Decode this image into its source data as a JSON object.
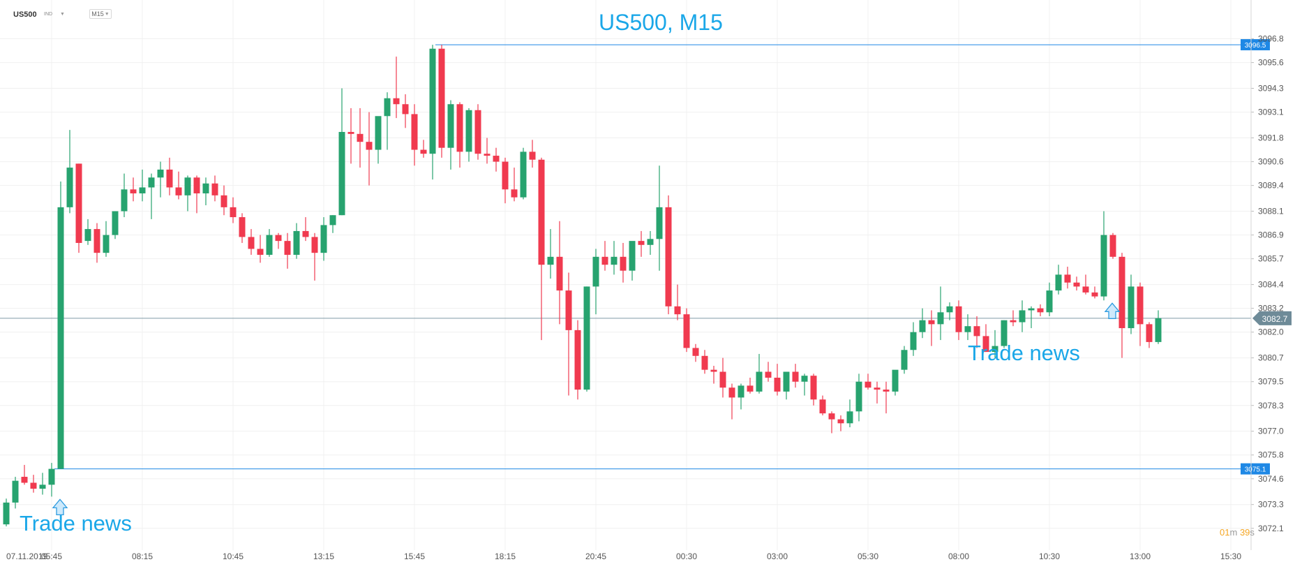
{
  "header": {
    "symbol": "US500",
    "market_type": "IND",
    "timeframe": "M15",
    "title": "US500, M15"
  },
  "timer": {
    "minutes": "01",
    "m_unit": "m",
    "seconds": "39",
    "s_unit": "s"
  },
  "colors": {
    "up": "#27a36f",
    "down": "#f03a4f",
    "level_line": "#1e88e5",
    "title": "#1aa7e8",
    "annotation": "#1aa7e8",
    "grid": "#f0f0f0",
    "axis_text": "#555555"
  },
  "chart_data": {
    "type": "candlestick",
    "title": "US500, M15",
    "ylim": [
      3071.0,
      3097.7
    ],
    "y_ticks": [
      "3096.8",
      "3095.6",
      "3094.3",
      "3093.1",
      "3091.8",
      "3090.6",
      "3089.4",
      "3088.1",
      "3086.9",
      "3085.7",
      "3084.4",
      "3083.2",
      "3082.0",
      "3080.7",
      "3079.5",
      "3078.3",
      "3077.0",
      "3075.8",
      "3074.6",
      "3073.3",
      "3072.1"
    ],
    "x_labels": [
      "07.11.2019",
      "05:45",
      "08:15",
      "10:45",
      "13:15",
      "15:45",
      "18:15",
      "20:45",
      "00:30",
      "03:00",
      "05:30",
      "08:00",
      "10:30",
      "13:00",
      "15:30"
    ],
    "candles": [
      [
        3072.3,
        3073.6,
        3072.2,
        3073.4
      ],
      [
        3073.4,
        3074.7,
        3073.1,
        3074.5
      ],
      [
        3074.7,
        3075.3,
        3074.3,
        3074.4
      ],
      [
        3074.4,
        3074.8,
        3073.9,
        3074.1
      ],
      [
        3074.1,
        3074.9,
        3073.8,
        3074.3
      ],
      [
        3074.3,
        3075.4,
        3073.7,
        3075.1
      ],
      [
        3075.1,
        3089.6,
        3075.1,
        3088.3
      ],
      [
        3088.3,
        3092.2,
        3088.0,
        3090.3
      ],
      [
        3090.5,
        3090.5,
        3086.0,
        3086.5
      ],
      [
        3086.6,
        3087.7,
        3086.4,
        3087.2
      ],
      [
        3087.2,
        3087.5,
        3085.5,
        3086.0
      ],
      [
        3086.0,
        3087.6,
        3085.8,
        3086.9
      ],
      [
        3086.9,
        3088.1,
        3086.7,
        3088.1
      ],
      [
        3088.1,
        3090.0,
        3087.8,
        3089.2
      ],
      [
        3089.2,
        3089.8,
        3088.6,
        3089.0
      ],
      [
        3089.0,
        3090.2,
        3088.6,
        3089.3
      ],
      [
        3089.3,
        3090.0,
        3087.7,
        3089.8
      ],
      [
        3089.8,
        3090.6,
        3088.8,
        3090.2
      ],
      [
        3090.2,
        3090.8,
        3088.9,
        3089.3
      ],
      [
        3089.3,
        3090.1,
        3088.7,
        3088.9
      ],
      [
        3088.9,
        3089.9,
        3088.1,
        3089.8
      ],
      [
        3089.8,
        3089.9,
        3088.0,
        3089.0
      ],
      [
        3089.0,
        3089.8,
        3088.4,
        3089.5
      ],
      [
        3089.5,
        3089.9,
        3088.6,
        3088.9
      ],
      [
        3088.9,
        3089.4,
        3087.9,
        3088.3
      ],
      [
        3088.3,
        3088.8,
        3087.5,
        3087.8
      ],
      [
        3087.8,
        3088.0,
        3086.5,
        3086.8
      ],
      [
        3086.8,
        3087.2,
        3085.9,
        3086.2
      ],
      [
        3086.2,
        3086.9,
        3085.5,
        3085.9
      ],
      [
        3085.9,
        3087.2,
        3085.8,
        3086.9
      ],
      [
        3086.9,
        3087.0,
        3086.2,
        3086.6
      ],
      [
        3086.6,
        3087.0,
        3085.2,
        3085.9
      ],
      [
        3085.9,
        3087.5,
        3085.7,
        3087.1
      ],
      [
        3087.1,
        3087.8,
        3086.6,
        3086.8
      ],
      [
        3086.8,
        3087.0,
        3084.6,
        3086.0
      ],
      [
        3086.0,
        3087.8,
        3085.6,
        3087.4
      ],
      [
        3087.4,
        3087.9,
        3087.0,
        3087.9
      ],
      [
        3087.9,
        3094.3,
        3087.9,
        3092.1
      ],
      [
        3092.1,
        3093.3,
        3090.5,
        3092.0
      ],
      [
        3092.0,
        3093.3,
        3090.3,
        3091.6
      ],
      [
        3091.6,
        3093.1,
        3089.4,
        3091.2
      ],
      [
        3091.2,
        3092.7,
        3090.5,
        3092.9
      ],
      [
        3092.9,
        3094.1,
        3091.2,
        3093.8
      ],
      [
        3093.8,
        3095.9,
        3092.8,
        3093.5
      ],
      [
        3093.5,
        3094.0,
        3092.3,
        3093.0
      ],
      [
        3093.0,
        3093.5,
        3090.4,
        3091.2
      ],
      [
        3091.2,
        3091.7,
        3090.8,
        3091.0
      ],
      [
        3091.0,
        3096.5,
        3089.7,
        3096.3
      ],
      [
        3096.3,
        3096.5,
        3090.8,
        3091.3
      ],
      [
        3091.3,
        3093.7,
        3090.2,
        3093.5
      ],
      [
        3093.5,
        3093.6,
        3090.3,
        3091.1
      ],
      [
        3091.1,
        3093.3,
        3090.6,
        3093.2
      ],
      [
        3093.2,
        3093.5,
        3090.7,
        3091.0
      ],
      [
        3091.0,
        3091.8,
        3090.5,
        3090.9
      ],
      [
        3090.9,
        3091.3,
        3090.1,
        3090.6
      ],
      [
        3090.6,
        3090.8,
        3088.5,
        3089.2
      ],
      [
        3089.2,
        3090.3,
        3088.6,
        3088.8
      ],
      [
        3088.8,
        3091.3,
        3088.7,
        3091.1
      ],
      [
        3091.1,
        3091.7,
        3090.3,
        3090.7
      ],
      [
        3090.7,
        3090.8,
        3081.6,
        3085.4
      ],
      [
        3085.4,
        3087.2,
        3084.7,
        3085.8
      ],
      [
        3085.8,
        3087.6,
        3082.4,
        3084.1
      ],
      [
        3084.1,
        3085.0,
        3078.8,
        3082.1
      ],
      [
        3082.1,
        3082.6,
        3078.6,
        3079.1
      ],
      [
        3079.1,
        3084.3,
        3079.0,
        3084.3
      ],
      [
        3084.3,
        3086.2,
        3082.9,
        3085.8
      ],
      [
        3085.8,
        3086.6,
        3085.1,
        3085.4
      ],
      [
        3085.4,
        3086.6,
        3084.9,
        3085.8
      ],
      [
        3085.8,
        3086.5,
        3084.5,
        3085.1
      ],
      [
        3085.1,
        3086.5,
        3084.6,
        3086.6
      ],
      [
        3086.6,
        3087.1,
        3085.8,
        3086.4
      ],
      [
        3086.4,
        3087.1,
        3085.9,
        3086.7
      ],
      [
        3086.7,
        3090.4,
        3085.1,
        3088.3
      ],
      [
        3088.3,
        3088.9,
        3082.9,
        3083.3
      ],
      [
        3083.3,
        3084.4,
        3082.6,
        3082.9
      ],
      [
        3082.9,
        3083.2,
        3081.0,
        3081.2
      ],
      [
        3081.2,
        3081.4,
        3080.5,
        3080.8
      ],
      [
        3080.8,
        3081.1,
        3079.9,
        3080.1
      ],
      [
        3080.1,
        3080.3,
        3079.4,
        3080.0
      ],
      [
        3080.0,
        3080.7,
        3078.7,
        3079.2
      ],
      [
        3079.2,
        3079.4,
        3077.6,
        3078.7
      ],
      [
        3078.7,
        3079.4,
        3078.1,
        3079.3
      ],
      [
        3079.3,
        3079.7,
        3078.9,
        3079.0
      ],
      [
        3079.0,
        3080.9,
        3078.9,
        3080.0
      ],
      [
        3080.0,
        3080.5,
        3079.5,
        3079.7
      ],
      [
        3079.7,
        3080.4,
        3078.8,
        3079.0
      ],
      [
        3079.0,
        3079.8,
        3078.6,
        3080.0
      ],
      [
        3080.0,
        3080.4,
        3079.2,
        3079.5
      ],
      [
        3079.5,
        3079.9,
        3078.8,
        3079.8
      ],
      [
        3079.8,
        3079.9,
        3078.3,
        3078.6
      ],
      [
        3078.6,
        3078.8,
        3077.8,
        3077.9
      ],
      [
        3077.9,
        3078.0,
        3076.9,
        3077.6
      ],
      [
        3077.6,
        3077.8,
        3077.0,
        3077.4
      ],
      [
        3077.4,
        3078.6,
        3077.2,
        3078.0
      ],
      [
        3078.0,
        3079.9,
        3077.5,
        3079.5
      ],
      [
        3079.5,
        3079.9,
        3079.1,
        3079.2
      ],
      [
        3079.2,
        3079.5,
        3078.4,
        3079.1
      ],
      [
        3079.1,
        3079.5,
        3077.9,
        3079.0
      ],
      [
        3079.0,
        3079.9,
        3078.8,
        3080.1
      ],
      [
        3080.1,
        3081.3,
        3079.9,
        3081.1
      ],
      [
        3081.1,
        3082.5,
        3080.8,
        3082.0
      ],
      [
        3082.0,
        3083.2,
        3081.7,
        3082.6
      ],
      [
        3082.6,
        3083.1,
        3081.3,
        3082.4
      ],
      [
        3082.4,
        3084.3,
        3081.6,
        3083.0
      ],
      [
        3083.0,
        3083.5,
        3082.6,
        3083.3
      ],
      [
        3083.3,
        3083.6,
        3081.6,
        3082.0
      ],
      [
        3082.0,
        3082.9,
        3081.6,
        3082.3
      ],
      [
        3082.3,
        3082.8,
        3081.2,
        3081.8
      ],
      [
        3081.8,
        3082.4,
        3081.0,
        3081.0
      ],
      [
        3081.0,
        3082.1,
        3080.7,
        3081.3
      ],
      [
        3081.3,
        3082.6,
        3081.2,
        3082.6
      ],
      [
        3082.6,
        3083.1,
        3082.3,
        3082.5
      ],
      [
        3082.5,
        3083.6,
        3082.0,
        3083.1
      ],
      [
        3083.1,
        3083.3,
        3082.2,
        3083.2
      ],
      [
        3083.2,
        3083.4,
        3082.8,
        3083.0
      ],
      [
        3083.0,
        3084.5,
        3082.8,
        3084.1
      ],
      [
        3084.1,
        3085.4,
        3083.9,
        3084.9
      ],
      [
        3084.9,
        3085.3,
        3084.2,
        3084.5
      ],
      [
        3084.5,
        3084.8,
        3084.1,
        3084.3
      ],
      [
        3084.3,
        3084.9,
        3083.9,
        3084.0
      ],
      [
        3084.0,
        3084.3,
        3083.7,
        3083.8
      ],
      [
        3083.8,
        3088.1,
        3083.6,
        3086.9
      ],
      [
        3086.9,
        3087.0,
        3085.7,
        3085.8
      ],
      [
        3085.8,
        3086.0,
        3080.7,
        3082.2
      ],
      [
        3082.2,
        3084.9,
        3081.9,
        3084.3
      ],
      [
        3084.3,
        3084.5,
        3081.3,
        3082.4
      ],
      [
        3082.4,
        3082.5,
        3081.2,
        3081.5
      ],
      [
        3081.5,
        3083.1,
        3081.4,
        3082.7
      ]
    ],
    "horizontal_levels": [
      3096.5,
      3075.1
    ],
    "current_price": 3082.7,
    "annotations": [
      {
        "text": "Trade news",
        "candle_index": 5
      },
      {
        "text": "Trade news",
        "candle_index": 121
      }
    ],
    "grid": true
  }
}
